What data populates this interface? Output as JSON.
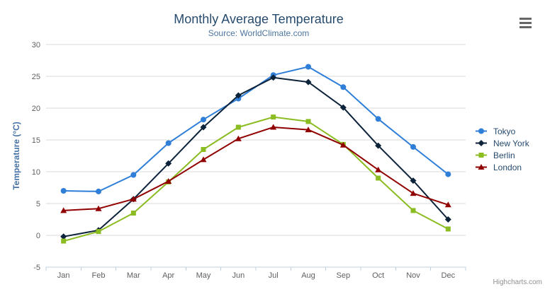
{
  "header": {
    "title": "Monthly Average Temperature",
    "subtitle": "Source: WorldClimate.com"
  },
  "toolbar": {
    "menu_icon": "hamburger-menu"
  },
  "credits": {
    "text": "Highcharts.com"
  },
  "colors": {
    "title_text": "#274b6d",
    "subtitle_text": "#4d759e",
    "axis_labels": "#606060",
    "y_axis_title": "#4572A7",
    "gridline": "#D8D8D8",
    "x_axis_line": "#C0D0E0",
    "legend_text": "#274b6d",
    "credits_text": "#909090",
    "menu_icon": "#666666"
  },
  "chart_data": {
    "type": "line",
    "title": "Monthly Average Temperature",
    "subtitle": "Source: WorldClimate.com",
    "categories": [
      "Jan",
      "Feb",
      "Mar",
      "Apr",
      "May",
      "Jun",
      "Jul",
      "Aug",
      "Sep",
      "Oct",
      "Nov",
      "Dec"
    ],
    "xlabel": "",
    "ylabel": "Temperature (°C)",
    "ylim": [
      -5,
      30
    ],
    "ytick_step": 5,
    "yticks": [
      -5,
      0,
      5,
      10,
      15,
      20,
      25,
      30
    ],
    "grid": true,
    "legend_position": "right-middle",
    "series": [
      {
        "name": "Tokyo",
        "color": "#2f7ed8",
        "marker": "circle",
        "values": [
          7.0,
          6.9,
          9.5,
          14.5,
          18.2,
          21.5,
          25.2,
          26.5,
          23.3,
          18.3,
          13.9,
          9.6
        ]
      },
      {
        "name": "New York",
        "color": "#0d233a",
        "marker": "diamond",
        "values": [
          -0.2,
          0.8,
          5.7,
          11.3,
          17.0,
          22.0,
          24.8,
          24.1,
          20.1,
          14.1,
          8.6,
          2.5
        ]
      },
      {
        "name": "Berlin",
        "color": "#8bbc21",
        "marker": "square",
        "values": [
          -0.9,
          0.6,
          3.5,
          8.4,
          13.5,
          17.0,
          18.6,
          17.9,
          14.3,
          9.0,
          3.9,
          1.0
        ]
      },
      {
        "name": "London",
        "color": "#910000",
        "marker": "triangle",
        "values": [
          3.9,
          4.2,
          5.7,
          8.5,
          11.9,
          15.2,
          17.0,
          16.6,
          14.2,
          10.3,
          6.6,
          4.8
        ]
      }
    ]
  }
}
